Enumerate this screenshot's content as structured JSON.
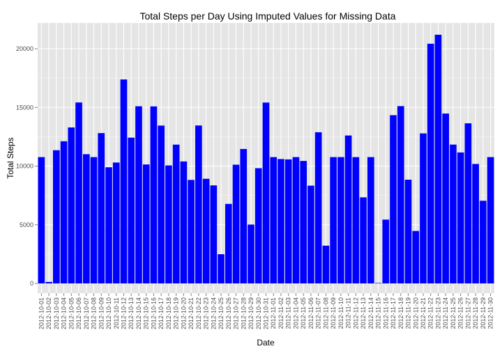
{
  "chart_data": {
    "type": "bar",
    "title": "Total Steps per Day Using Imputed Values for Missing Data",
    "xlabel": "Date",
    "ylabel": "Total Steps",
    "ylim": [
      0,
      22200
    ],
    "yticks": [
      0,
      5000,
      10000,
      15000,
      20000
    ],
    "grid": true,
    "bar_color": "#0000ff",
    "panel_color": "#e5e5e5",
    "grid_color": "#ffffff",
    "categories": [
      "2012-10-01",
      "2012-10-02",
      "2012-10-03",
      "2012-10-04",
      "2012-10-05",
      "2012-10-06",
      "2012-10-07",
      "2012-10-08",
      "2012-10-09",
      "2012-10-10",
      "2012-10-11",
      "2012-10-12",
      "2012-10-13",
      "2012-10-14",
      "2012-10-15",
      "2012-10-16",
      "2012-10-17",
      "2012-10-18",
      "2012-10-19",
      "2012-10-20",
      "2012-10-21",
      "2012-10-22",
      "2012-10-23",
      "2012-10-24",
      "2012-10-25",
      "2012-10-26",
      "2012-10-27",
      "2012-10-28",
      "2012-10-29",
      "2012-10-30",
      "2012-10-31",
      "2012-11-01",
      "2012-11-02",
      "2012-11-03",
      "2012-11-04",
      "2012-11-05",
      "2012-11-06",
      "2012-11-07",
      "2012-11-08",
      "2012-11-09",
      "2012-11-10",
      "2012-11-11",
      "2012-11-12",
      "2012-11-13",
      "2012-11-14",
      "2012-11-15",
      "2012-11-16",
      "2012-11-17",
      "2012-11-18",
      "2012-11-19",
      "2012-11-20",
      "2012-11-21",
      "2012-11-22",
      "2012-11-23",
      "2012-11-24",
      "2012-11-25",
      "2012-11-26",
      "2012-11-27",
      "2012-11-28",
      "2012-11-29",
      "2012-11-30"
    ],
    "values": [
      10766,
      126,
      11352,
      12116,
      13294,
      15420,
      11015,
      10766,
      12811,
      9900,
      10304,
      17382,
      12426,
      15098,
      10139,
      15084,
      13452,
      10056,
      11829,
      10395,
      8821,
      13460,
      8918,
      8355,
      2492,
      6778,
      10119,
      11458,
      5018,
      9819,
      15414,
      10766,
      10600,
      10571,
      10766,
      10439,
      8334,
      12883,
      3219,
      10766,
      10766,
      12608,
      10765,
      7336,
      10766,
      41,
      5441,
      14339,
      15110,
      8841,
      4472,
      12787,
      20427,
      21194,
      14478,
      11834,
      11162,
      13646,
      10183,
      7047,
      10766
    ]
  }
}
